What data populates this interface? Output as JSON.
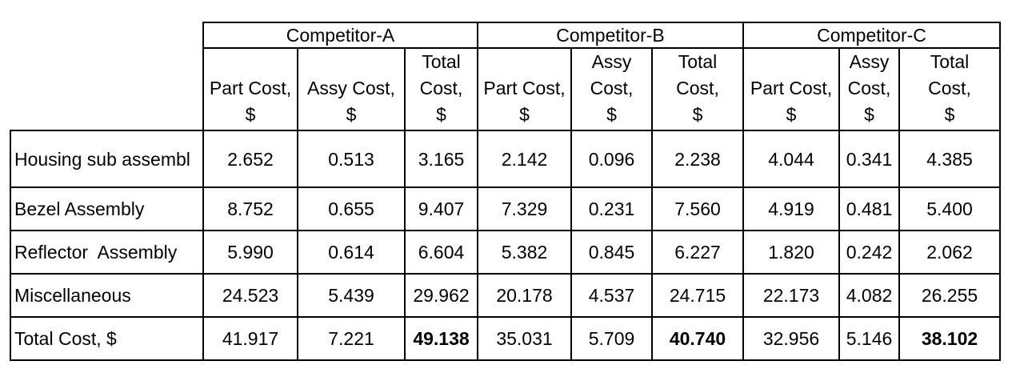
{
  "groups": [
    "Competitor-A",
    "Competitor-B",
    "Competitor-C"
  ],
  "column_headers": {
    "a": [
      "Part Cost,\n$",
      "Assy Cost,\n$",
      "Total\nCost,\n$"
    ],
    "b": [
      "Part Cost,\n$",
      "Assy\nCost,\n$",
      "Total\nCost,\n$"
    ],
    "c": [
      "Part Cost,\n$",
      "Assy\nCost,\n$",
      "Total\nCost,\n$"
    ]
  },
  "rows": [
    {
      "label": "Housing sub assembl",
      "values": [
        "2.652",
        "0.513",
        "3.165",
        "2.142",
        "0.096",
        "2.238",
        "4.044",
        "0.341",
        "4.385"
      ]
    },
    {
      "label": "Bezel Assembly",
      "values": [
        "8.752",
        "0.655",
        "9.407",
        "7.329",
        "0.231",
        "7.560",
        "4.919",
        "0.481",
        "5.400"
      ]
    },
    {
      "label": "Reflector  Assembly",
      "values": [
        "5.990",
        "0.614",
        "6.604",
        "5.382",
        "0.845",
        "6.227",
        "1.820",
        "0.242",
        "2.062"
      ]
    },
    {
      "label": "Miscellaneous",
      "values": [
        "24.523",
        "5.439",
        "29.962",
        "20.178",
        "4.537",
        "24.715",
        "22.173",
        "4.082",
        "26.255"
      ]
    },
    {
      "label": "Total Cost, $",
      "values": [
        "41.917",
        "7.221",
        "49.138",
        "35.031",
        "5.709",
        "40.740",
        "32.956",
        "5.146",
        "38.102"
      ]
    }
  ]
}
